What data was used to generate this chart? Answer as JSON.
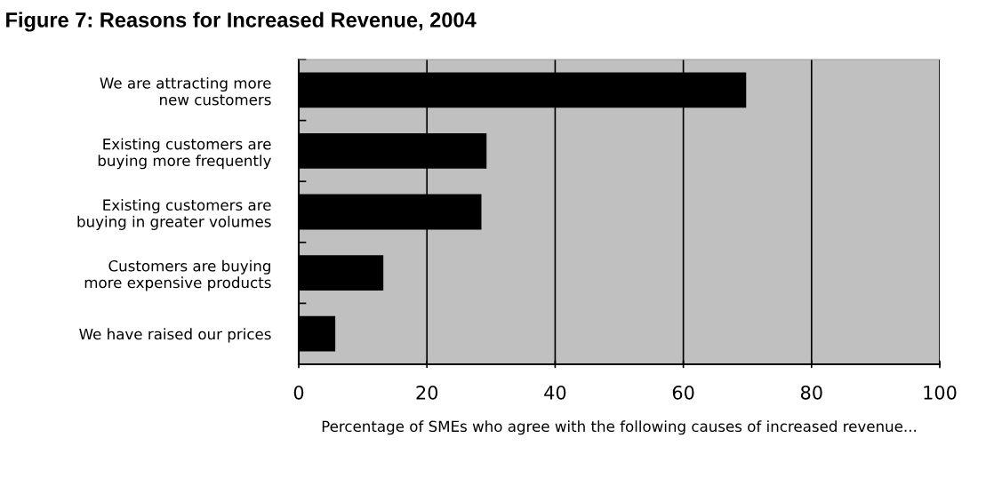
{
  "chart_data": {
    "type": "bar",
    "orientation": "horizontal",
    "title": "Figure 7: Reasons for Increased Revenue, 2004",
    "xlabel": "Percentage of SMEs who agree with the following causes of increased revenue...",
    "categories": [
      "We are attracting more\nnew customers",
      "Existing customers are\nbuying more frequently",
      "Existing customers are\nbuying in greater volumes",
      "Customers are buying\nmore expensive products",
      "We have raised our prices"
    ],
    "values": [
      69.8,
      29.3,
      28.5,
      13.2,
      5.7
    ],
    "color": "#000000",
    "xlim": [
      0,
      100
    ],
    "xticks": [
      0,
      20,
      40,
      60,
      80,
      100
    ],
    "grid": "x"
  }
}
